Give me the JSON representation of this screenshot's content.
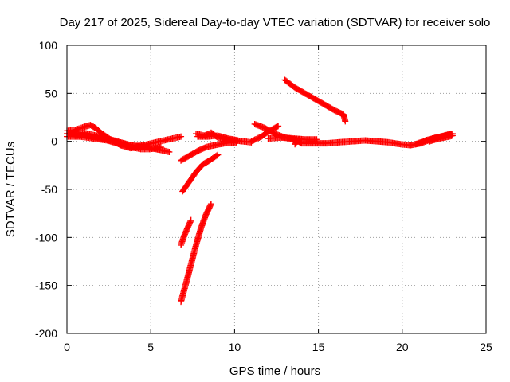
{
  "chart_data": {
    "type": "scatter",
    "title": "Day 217 of 2025, Sidereal Day-to-day VTEC variation (SDTVAR) for receiver solo",
    "xlabel": "GPS time / hours",
    "ylabel": "SDTVAR / TECUs",
    "xlim": [
      0,
      25
    ],
    "ylim": [
      -200,
      100
    ],
    "xticks": [
      0,
      5,
      10,
      15,
      20,
      25
    ],
    "yticks": [
      -200,
      -150,
      -100,
      -50,
      0,
      50,
      100
    ],
    "xtick_labels": [
      "0",
      "5",
      "10",
      "15",
      "20",
      "25"
    ],
    "ytick_labels": [
      "-200",
      "-150",
      "-100",
      "-50",
      "0",
      "50",
      "100"
    ],
    "grid": true,
    "marker": "plus",
    "color": "#ff0000",
    "tracks": [
      [
        [
          0.0,
          11
        ],
        [
          0.5,
          12
        ],
        [
          1.0,
          15
        ],
        [
          1.4,
          17
        ],
        [
          1.7,
          14
        ],
        [
          2.1,
          8
        ],
        [
          2.6,
          2
        ],
        [
          3.2,
          -4
        ],
        [
          3.8,
          -7
        ],
        [
          4.3,
          -6
        ],
        [
          4.8,
          -3
        ],
        [
          5.3,
          -1
        ],
        [
          5.8,
          1
        ],
        [
          6.3,
          3
        ],
        [
          6.8,
          5
        ]
      ],
      [
        [
          0.0,
          8
        ],
        [
          0.7,
          7
        ],
        [
          1.4,
          5
        ],
        [
          2.1,
          3
        ],
        [
          2.8,
          0
        ],
        [
          3.5,
          -3
        ],
        [
          4.2,
          -5
        ],
        [
          5.0,
          -7
        ],
        [
          5.6,
          -9
        ],
        [
          6.1,
          -11
        ]
      ],
      [
        [
          0.0,
          5
        ],
        [
          0.8,
          5
        ],
        [
          1.6,
          3
        ],
        [
          2.4,
          1
        ],
        [
          3.0,
          -2
        ],
        [
          3.6,
          -5
        ],
        [
          4.4,
          -8
        ],
        [
          5.0,
          -8
        ],
        [
          5.6,
          -6
        ]
      ],
      [
        [
          0.1,
          8
        ],
        [
          1.0,
          9
        ],
        [
          2.0,
          5
        ],
        [
          3.0,
          0
        ],
        [
          4.0,
          -5
        ],
        [
          4.6,
          -4
        ]
      ],
      [
        [
          6.8,
          -20
        ],
        [
          7.3,
          -15
        ],
        [
          7.8,
          -10
        ],
        [
          8.3,
          -6
        ],
        [
          8.8,
          -4
        ],
        [
          9.4,
          -2
        ],
        [
          10.1,
          -1
        ]
      ],
      [
        [
          6.9,
          -52
        ],
        [
          7.3,
          -42
        ],
        [
          7.7,
          -32
        ],
        [
          8.1,
          -24
        ],
        [
          8.5,
          -20
        ],
        [
          9.0,
          -14
        ]
      ],
      [
        [
          6.8,
          -108
        ],
        [
          7.0,
          -98
        ],
        [
          7.2,
          -90
        ],
        [
          7.4,
          -82
        ]
      ],
      [
        [
          6.8,
          -167
        ],
        [
          7.1,
          -148
        ],
        [
          7.4,
          -128
        ],
        [
          7.7,
          -108
        ],
        [
          8.0,
          -90
        ],
        [
          8.3,
          -76
        ],
        [
          8.6,
          -65
        ]
      ],
      [
        [
          7.7,
          8
        ],
        [
          8.2,
          6
        ],
        [
          8.6,
          9
        ],
        [
          9.0,
          4
        ],
        [
          9.5,
          2
        ],
        [
          10.0,
          1
        ],
        [
          10.5,
          0
        ],
        [
          11.0,
          -1
        ]
      ],
      [
        [
          7.8,
          5
        ],
        [
          8.4,
          5
        ],
        [
          9.0,
          6
        ],
        [
          9.6,
          3
        ],
        [
          10.2,
          1
        ]
      ],
      [
        [
          11.0,
          0
        ],
        [
          11.6,
          5
        ],
        [
          12.0,
          10
        ],
        [
          12.6,
          16
        ]
      ],
      [
        [
          11.2,
          18
        ],
        [
          11.8,
          14
        ],
        [
          12.4,
          8
        ],
        [
          13.0,
          4
        ],
        [
          13.6,
          2
        ],
        [
          14.0,
          -2
        ],
        [
          14.8,
          -2
        ],
        [
          15.5,
          -2
        ],
        [
          16.2,
          -1
        ],
        [
          17.0,
          0
        ],
        [
          17.8,
          1
        ],
        [
          18.5,
          0
        ],
        [
          19.2,
          -1
        ],
        [
          19.9,
          -3
        ],
        [
          20.5,
          -4
        ],
        [
          21.1,
          -2
        ],
        [
          21.7,
          2
        ],
        [
          22.3,
          5
        ],
        [
          22.9,
          8
        ]
      ],
      [
        [
          12.0,
          3
        ],
        [
          12.8,
          4
        ],
        [
          13.5,
          3
        ],
        [
          14.2,
          2
        ],
        [
          14.9,
          2
        ]
      ],
      [
        [
          13.6,
          -3
        ],
        [
          13.8,
          2
        ]
      ],
      [
        [
          20.8,
          -3
        ],
        [
          21.4,
          1
        ],
        [
          22.0,
          4
        ],
        [
          22.6,
          6
        ],
        [
          23.0,
          8
        ]
      ],
      [
        [
          21.6,
          0
        ],
        [
          22.2,
          3
        ],
        [
          22.8,
          5
        ],
        [
          23.0,
          6
        ]
      ],
      [
        [
          13.0,
          64
        ],
        [
          13.6,
          56
        ],
        [
          14.2,
          50
        ],
        [
          14.8,
          44
        ],
        [
          15.4,
          38
        ],
        [
          16.0,
          32
        ],
        [
          16.5,
          28
        ],
        [
          16.6,
          21
        ]
      ]
    ]
  }
}
